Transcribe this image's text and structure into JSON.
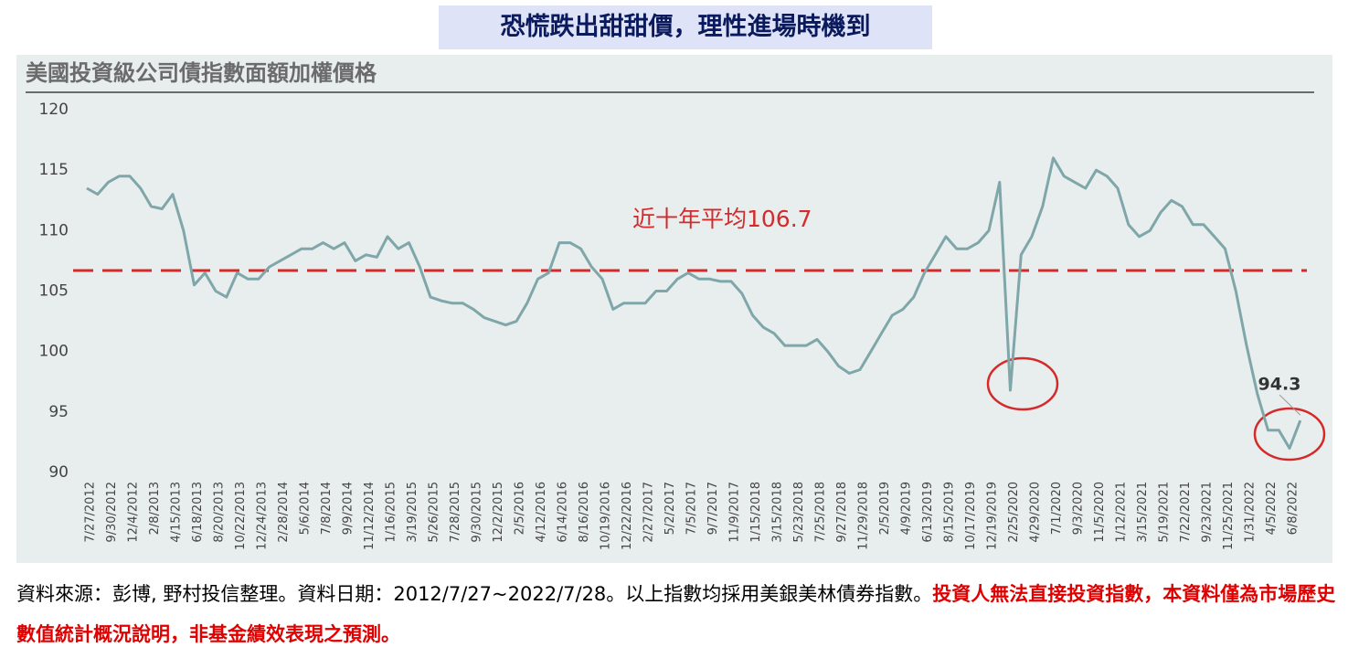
{
  "banner": "恐慌跌出甜甜價，理性進場時機到",
  "chart_data": {
    "type": "line",
    "title": "美國投資級公司債指數面額加權價格",
    "categories": [
      "7/27/2012",
      null,
      "9/30/2012",
      null,
      "12/4/2012",
      null,
      "2/8/2013",
      null,
      "4/15/2013",
      null,
      "6/18/2013",
      null,
      "8/20/2013",
      null,
      "10/22/2013",
      null,
      "12/24/2013",
      null,
      "2/28/2014",
      null,
      "5/6/2014",
      null,
      "7/8/2014",
      null,
      "9/9/2014",
      null,
      "11/12/2014",
      null,
      "1/16/2015",
      null,
      "3/19/2015",
      null,
      "5/26/2015",
      null,
      "7/28/2015",
      null,
      "9/30/2015",
      null,
      "12/2/2015",
      null,
      "2/5/2016",
      null,
      "4/12/2016",
      null,
      "6/14/2016",
      null,
      "8/16/2016",
      null,
      "10/19/2016",
      null,
      "12/22/2016",
      null,
      "2/27/2017",
      null,
      "5/2/2017",
      null,
      "7/5/2017",
      null,
      "9/7/2017",
      null,
      "11/9/2017",
      null,
      "1/15/2018",
      null,
      "3/15/2018",
      null,
      "5/23/2018",
      null,
      "7/25/2018",
      null,
      "9/27/2018",
      null,
      "11/29/2018",
      null,
      "2/5/2019",
      null,
      "4/9/2019",
      null,
      "6/13/2019",
      null,
      "8/15/2019",
      null,
      "10/17/2019",
      null,
      "12/19/2019",
      null,
      "2/25/2020",
      null,
      "4/29/2020",
      null,
      "7/1/2020",
      null,
      "9/3/2020",
      null,
      "11/5/2020",
      null,
      "1/12/2021",
      null,
      "3/15/2021",
      null,
      "5/19/2021",
      null,
      "7/22/2021",
      null,
      "9/23/2021",
      null,
      "11/25/2021",
      null,
      "1/31/2022",
      null,
      "4/5/2022",
      null,
      "6/8/2022",
      null
    ],
    "series": [
      {
        "color": "#7fa6a9",
        "values": [
          113.5,
          113,
          114,
          114.5,
          114.5,
          113.5,
          112,
          111.8,
          113,
          110,
          105.5,
          106.5,
          105,
          104.5,
          106.5,
          106,
          106,
          107,
          107.5,
          108,
          108.5,
          108.5,
          109,
          108.5,
          109,
          107.5,
          108,
          107.8,
          109.5,
          108.5,
          109,
          107,
          104.5,
          104.2,
          104,
          104,
          103.5,
          102.8,
          102.5,
          102.2,
          102.5,
          104,
          106,
          106.5,
          109,
          109,
          108.5,
          107,
          106,
          103.5,
          104,
          104,
          104,
          105,
          105,
          106,
          106.5,
          106,
          106,
          105.8,
          105.8,
          104.8,
          103,
          102,
          101.5,
          100.5,
          100.5,
          100.5,
          101,
          100,
          98.8,
          98.2,
          98.5,
          100,
          101.5,
          103,
          103.5,
          104.5,
          106.5,
          108,
          109.5,
          108.5,
          108.5,
          109,
          110,
          114,
          96.8,
          108,
          109.5,
          112,
          116,
          114.5,
          114,
          113.5,
          115,
          114.5,
          113.5,
          110.5,
          109.5,
          110,
          111.5,
          112.5,
          112,
          110.5,
          110.5,
          109.5,
          108.5,
          105,
          100.5,
          96.5,
          93.5,
          93.5,
          92,
          94.3
        ]
      }
    ],
    "ylim": [
      90,
      120
    ],
    "yticks": [
      90,
      95,
      100,
      105,
      110,
      115,
      120
    ],
    "grid": false,
    "average": {
      "value": 106.7,
      "label": "近十年平均106.7",
      "color": "#d42a2a"
    },
    "last_label": "94.3"
  },
  "footer": {
    "source": "資料來源：彭博, 野村投信整理。資料日期：2012/7/27~2022/7/28。以上指數均採用美銀美林債券指數。",
    "disclaimer": "投資人無法直接投資指數，本資料僅為市場歷史數值統計概況說明，非基金績效表現之預測。"
  }
}
